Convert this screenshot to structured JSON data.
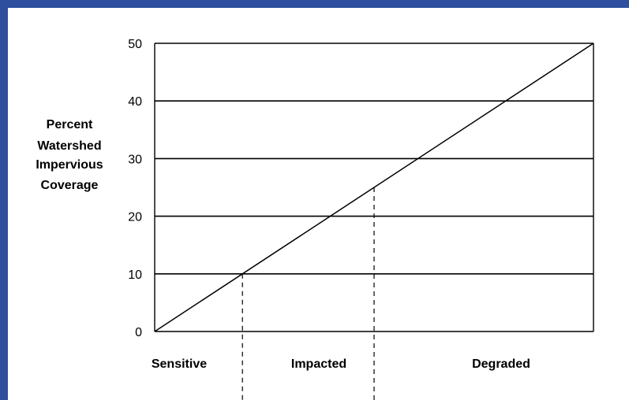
{
  "chart_data": {
    "type": "line",
    "ylabel_lines": [
      "Percent",
      "Watershed",
      "Impervious",
      "Coverage"
    ],
    "ylim": [
      0,
      50
    ],
    "yticks": [
      0,
      10,
      20,
      30,
      40,
      50
    ],
    "grid": true,
    "series": [
      {
        "x": [
          0,
          100
        ],
        "values": [
          0,
          50
        ]
      }
    ],
    "thresholds": [
      10,
      25
    ],
    "categories": [
      "Sensitive",
      "Impacted",
      "Degraded"
    ],
    "colors": {
      "frame": "#2d4f9e",
      "line": "#000000",
      "grid": "#000000"
    }
  }
}
